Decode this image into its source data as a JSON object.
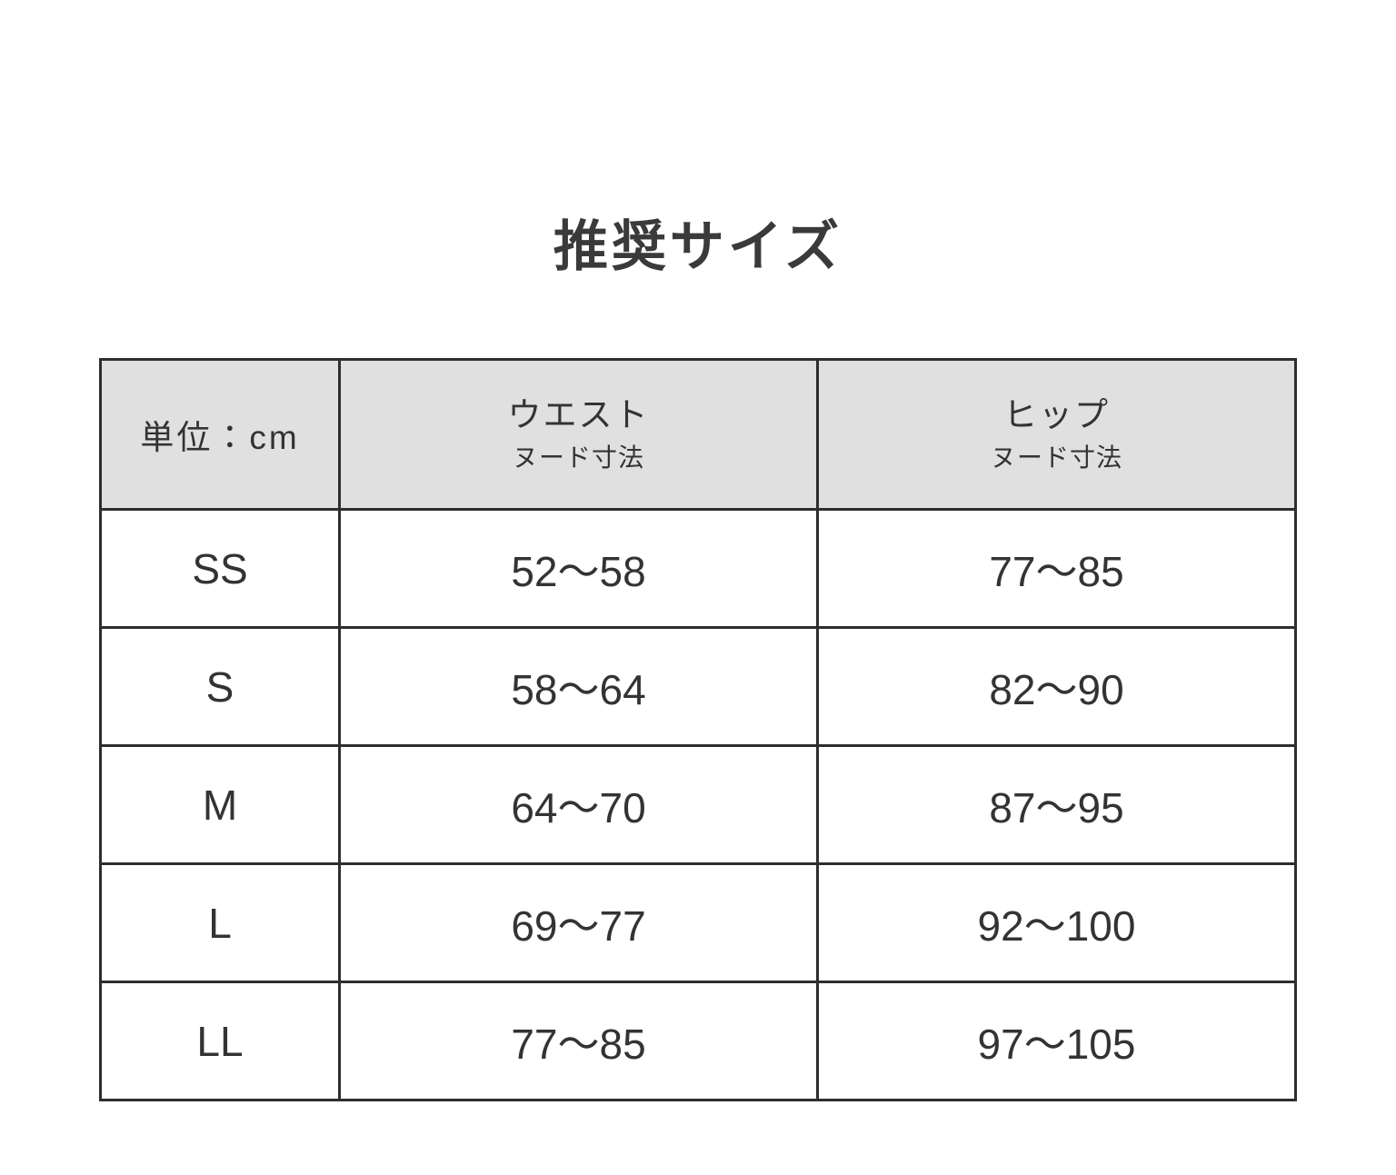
{
  "page": {
    "title": "推奨サイズ"
  },
  "table": {
    "unit_label": "単位：cm",
    "columns": [
      {
        "label": "ウエスト",
        "sublabel": "ヌード寸法"
      },
      {
        "label": "ヒップ",
        "sublabel": "ヌード寸法"
      }
    ],
    "rows": [
      {
        "size": "SS",
        "waist": "52〜58",
        "hip": "77〜85"
      },
      {
        "size": "S",
        "waist": "58〜64",
        "hip": "82〜90"
      },
      {
        "size": "M",
        "waist": "64〜70",
        "hip": "87〜95"
      },
      {
        "size": "L",
        "waist": "69〜77",
        "hip": "92〜100"
      },
      {
        "size": "LL",
        "waist": "77〜85",
        "hip": "97〜105"
      }
    ]
  },
  "colors": {
    "header_background": "#e0e0e0",
    "border": "#2e2e2e",
    "text": "#333333",
    "title_text": "#3a3a3a",
    "page_background": "#ffffff"
  },
  "chart_data": {
    "type": "table",
    "title": "推奨サイズ",
    "unit": "cm",
    "columns": [
      "単位：cm",
      "ウエスト（ヌード寸法）",
      "ヒップ（ヌード寸法）"
    ],
    "rows": [
      [
        "SS",
        "52〜58",
        "77〜85"
      ],
      [
        "S",
        "58〜64",
        "82〜90"
      ],
      [
        "M",
        "64〜70",
        "87〜95"
      ],
      [
        "L",
        "69〜77",
        "92〜100"
      ],
      [
        "LL",
        "77〜85",
        "97〜105"
      ]
    ]
  }
}
